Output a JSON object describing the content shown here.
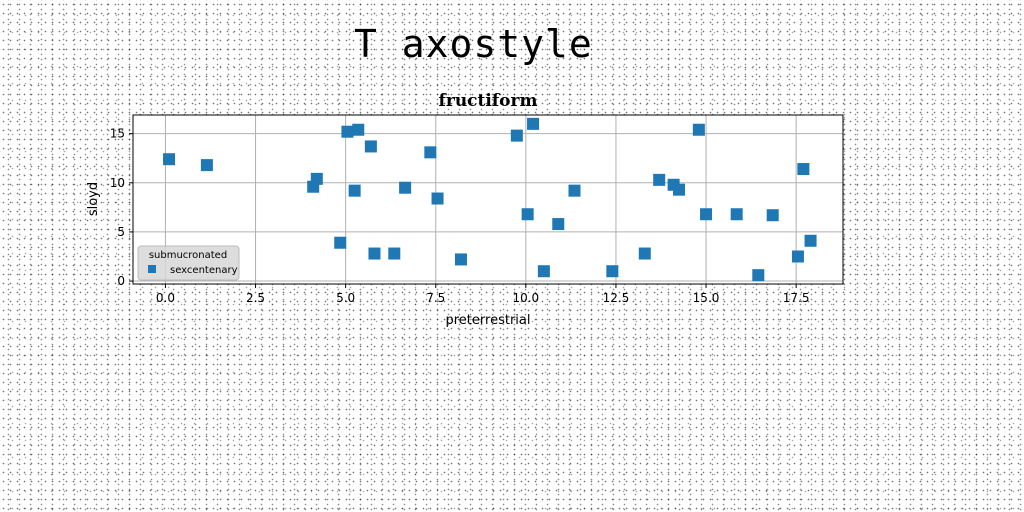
{
  "figure_title": "T axostyle",
  "chart_data": {
    "type": "scatter",
    "title": "fructiform",
    "xlabel": "preterrestrial",
    "ylabel": "sloyd",
    "xlim": [
      -0.9,
      18.8
    ],
    "ylim": [
      -0.3,
      16.9
    ],
    "xticks": [
      0.0,
      2.5,
      5.0,
      7.5,
      10.0,
      12.5,
      15.0,
      17.5
    ],
    "xtick_labels": [
      "0.0",
      "2.5",
      "5.0",
      "7.5",
      "10.0",
      "12.5",
      "15.0",
      "17.5"
    ],
    "yticks": [
      0,
      5,
      10,
      15
    ],
    "ytick_labels": [
      "0",
      "5",
      "10",
      "15"
    ],
    "grid": true,
    "marker": "square",
    "legend": {
      "title": "submucronated",
      "location": "lower-left"
    },
    "series": [
      {
        "name": "sexcentenary",
        "color": "#1f77b4",
        "points": [
          [
            0.1,
            12.4
          ],
          [
            1.15,
            11.8
          ],
          [
            4.1,
            9.6
          ],
          [
            4.2,
            10.4
          ],
          [
            4.85,
            3.9
          ],
          [
            5.05,
            15.2
          ],
          [
            5.25,
            9.2
          ],
          [
            5.35,
            15.4
          ],
          [
            5.7,
            13.7
          ],
          [
            5.8,
            2.8
          ],
          [
            6.35,
            2.8
          ],
          [
            6.65,
            9.5
          ],
          [
            7.35,
            13.1
          ],
          [
            7.55,
            8.4
          ],
          [
            8.2,
            2.2
          ],
          [
            9.75,
            14.8
          ],
          [
            10.05,
            6.8
          ],
          [
            10.2,
            16.0
          ],
          [
            10.5,
            1.0
          ],
          [
            10.9,
            5.8
          ],
          [
            11.35,
            9.2
          ],
          [
            12.4,
            1.0
          ],
          [
            13.3,
            2.8
          ],
          [
            13.7,
            10.3
          ],
          [
            14.1,
            9.8
          ],
          [
            14.25,
            9.3
          ],
          [
            14.8,
            15.4
          ],
          [
            15.0,
            6.8
          ],
          [
            15.85,
            6.8
          ],
          [
            16.45,
            0.6
          ],
          [
            16.85,
            6.7
          ],
          [
            17.55,
            2.5
          ],
          [
            17.7,
            11.4
          ],
          [
            17.9,
            4.1
          ]
        ]
      }
    ]
  }
}
